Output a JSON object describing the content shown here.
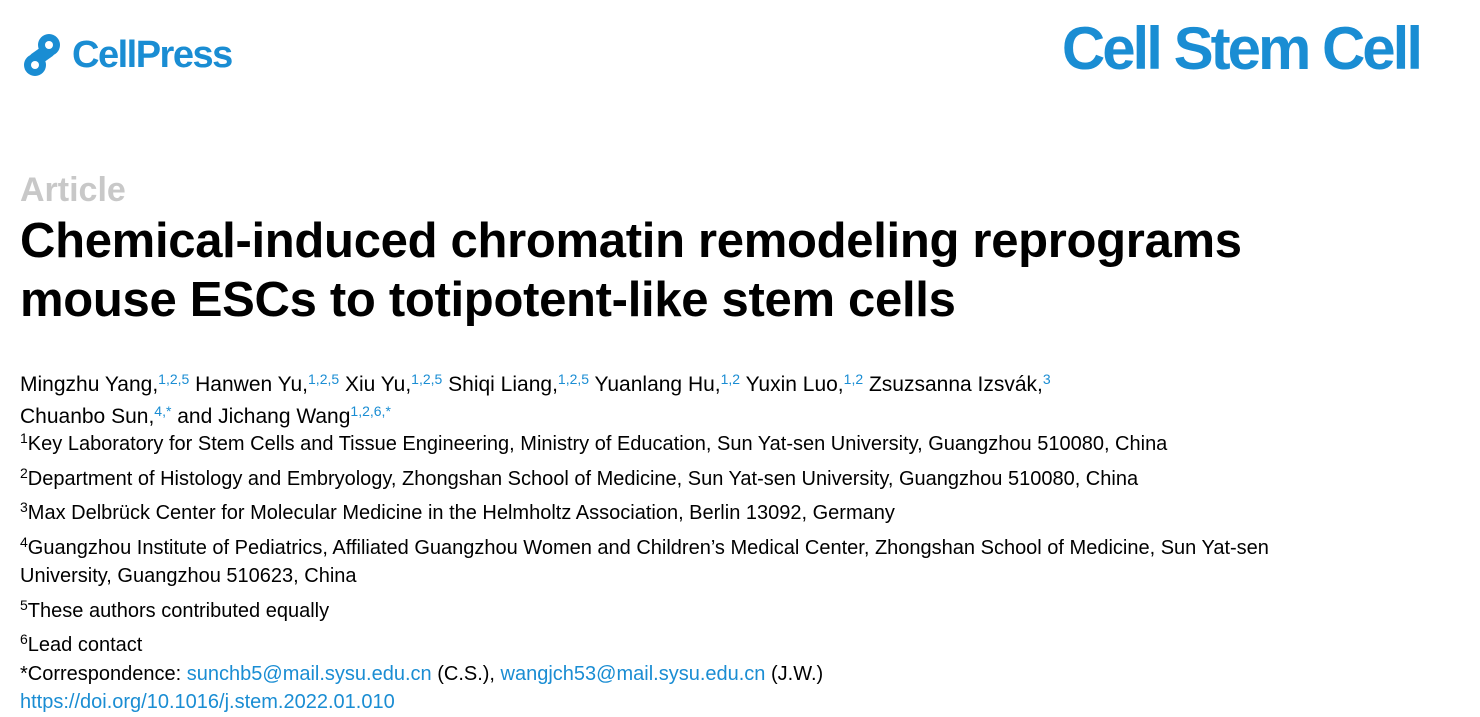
{
  "header": {
    "publisher": "CellPress",
    "journal": "Cell Stem Cell",
    "brand_color": "#1a8dd3"
  },
  "article_type": "Article",
  "title": {
    "line1": "Chemical-induced chromatin remodeling reprograms",
    "line2": "mouse ESCs to totipotent-like stem cells"
  },
  "authors": [
    {
      "name": "Mingzhu Yang,",
      "sup": "1,2,5"
    },
    {
      "name": "Hanwen Yu,",
      "sup": "1,2,5"
    },
    {
      "name": "Xiu Yu,",
      "sup": "1,2,5"
    },
    {
      "name": "Shiqi Liang,",
      "sup": "1,2,5"
    },
    {
      "name": "Yuanlang Hu,",
      "sup": "1,2"
    },
    {
      "name": "Yuxin Luo,",
      "sup": "1,2"
    },
    {
      "name": "Zsuzsanna Izsvák,",
      "sup": "3"
    },
    {
      "name": "Chuanbo Sun,",
      "sup": "4,*"
    },
    {
      "name": "and Jichang Wang",
      "sup": "1,2,6,*"
    }
  ],
  "affiliations": {
    "a1": {
      "num": "1",
      "text": "Key Laboratory for Stem Cells and Tissue Engineering, Ministry of Education, Sun Yat-sen University, Guangzhou 510080, China"
    },
    "a2": {
      "num": "2",
      "text": "Department of Histology and Embryology, Zhongshan School of Medicine, Sun Yat-sen University, Guangzhou 510080, China"
    },
    "a3": {
      "num": "3",
      "text": "Max Delbrück Center for Molecular Medicine in the Helmholtz Association, Berlin 13092, Germany"
    },
    "a4": {
      "num": "4",
      "text": "Guangzhou Institute of Pediatrics, Affiliated Guangzhou Women and Children’s Medical Center, Zhongshan School of Medicine, Sun Yat-sen",
      "cont": "University, Guangzhou 510623, China"
    },
    "a5": {
      "num": "5",
      "text": "These authors contributed equally"
    },
    "a6": {
      "num": "6",
      "text": "Lead contact"
    }
  },
  "correspondence": {
    "label": "*Correspondence: ",
    "email1": "sunchb5@mail.sysu.edu.cn",
    "initials1": " (C.S.), ",
    "email2": "wangjch53@mail.sysu.edu.cn",
    "initials2": " (J.W.)"
  },
  "doi": "https://doi.org/10.1016/j.stem.2022.01.010"
}
